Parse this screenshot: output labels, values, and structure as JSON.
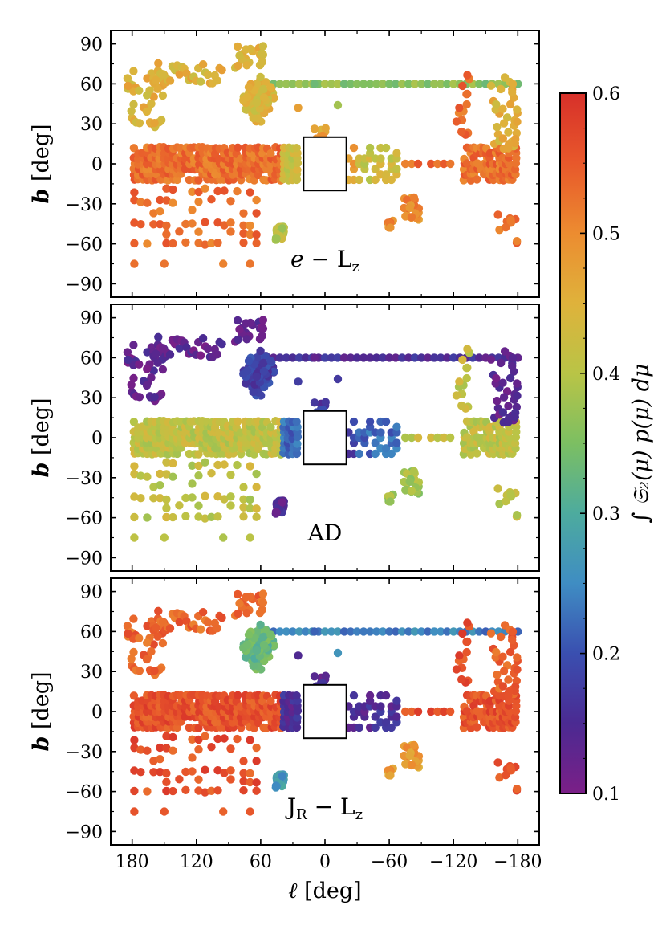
{
  "chart_data": {
    "type": "scatter",
    "shared": {
      "xlabel_symbol": "ℓ",
      "xlabel_unit": "[deg]",
      "ylabel_symbol": "b",
      "ylabel_unit": "[deg]",
      "xlim": [
        200,
        -200
      ],
      "ylim": [
        -100,
        100
      ],
      "xticks": [
        180,
        120,
        60,
        0,
        -60,
        -120,
        -180
      ],
      "xtick_labels": [
        "180",
        "120",
        "60",
        "0",
        "−60",
        "−120",
        "−180"
      ],
      "yticks": [
        90,
        60,
        30,
        0,
        -30,
        -60,
        -90
      ],
      "ytick_labels": [
        "90",
        "60",
        "30",
        "0",
        "−30",
        "−60",
        "−90"
      ],
      "masked_region": {
        "l": [
          -20,
          20
        ],
        "b": [
          -20,
          20
        ]
      }
    },
    "colorbar": {
      "label": "∫ 𝔖₂(μ) p(μ) dμ",
      "range": [
        0.1,
        0.6
      ],
      "ticks": [
        0.6,
        0.5,
        0.4,
        0.3,
        0.2,
        0.1
      ],
      "tick_labels": [
        "0.6",
        "0.5",
        "0.4",
        "0.3",
        "0.2",
        "0.1"
      ],
      "colormap": "spectral_r (purple → blue → green → yellow → orange → red)"
    },
    "panels": [
      {
        "label_main": "e − L",
        "label_sub": "z",
        "label_tail": "",
        "regions": {
          "default": 0.53,
          "high_lat": 0.45,
          "bulge_edge": 0.42,
          "group_60_58": 0.44,
          "group_42_m52": 0.4,
          "center_ring": 0.47,
          "row60": 0.36,
          "lmc": 0.5
        }
      },
      {
        "label_main": "AD",
        "label_sub": "",
        "label_tail": "",
        "regions": {
          "default": 0.41,
          "high_lat": 0.13,
          "bulge_edge": 0.22,
          "group_60_58": 0.18,
          "group_42_m52": 0.14,
          "center_ring": 0.17,
          "row60": 0.15,
          "lmc": 0.38
        }
      },
      {
        "label_main": "J",
        "label_sub": "R",
        "label_tail": " − L",
        "label_sub2": "z",
        "regions": {
          "default": 0.56,
          "high_lat": 0.54,
          "bulge_edge": 0.15,
          "group_60_58": 0.33,
          "group_42_m52": 0.27,
          "center_ring": 0.14,
          "row60": 0.24,
          "lmc": 0.48
        }
      }
    ]
  }
}
